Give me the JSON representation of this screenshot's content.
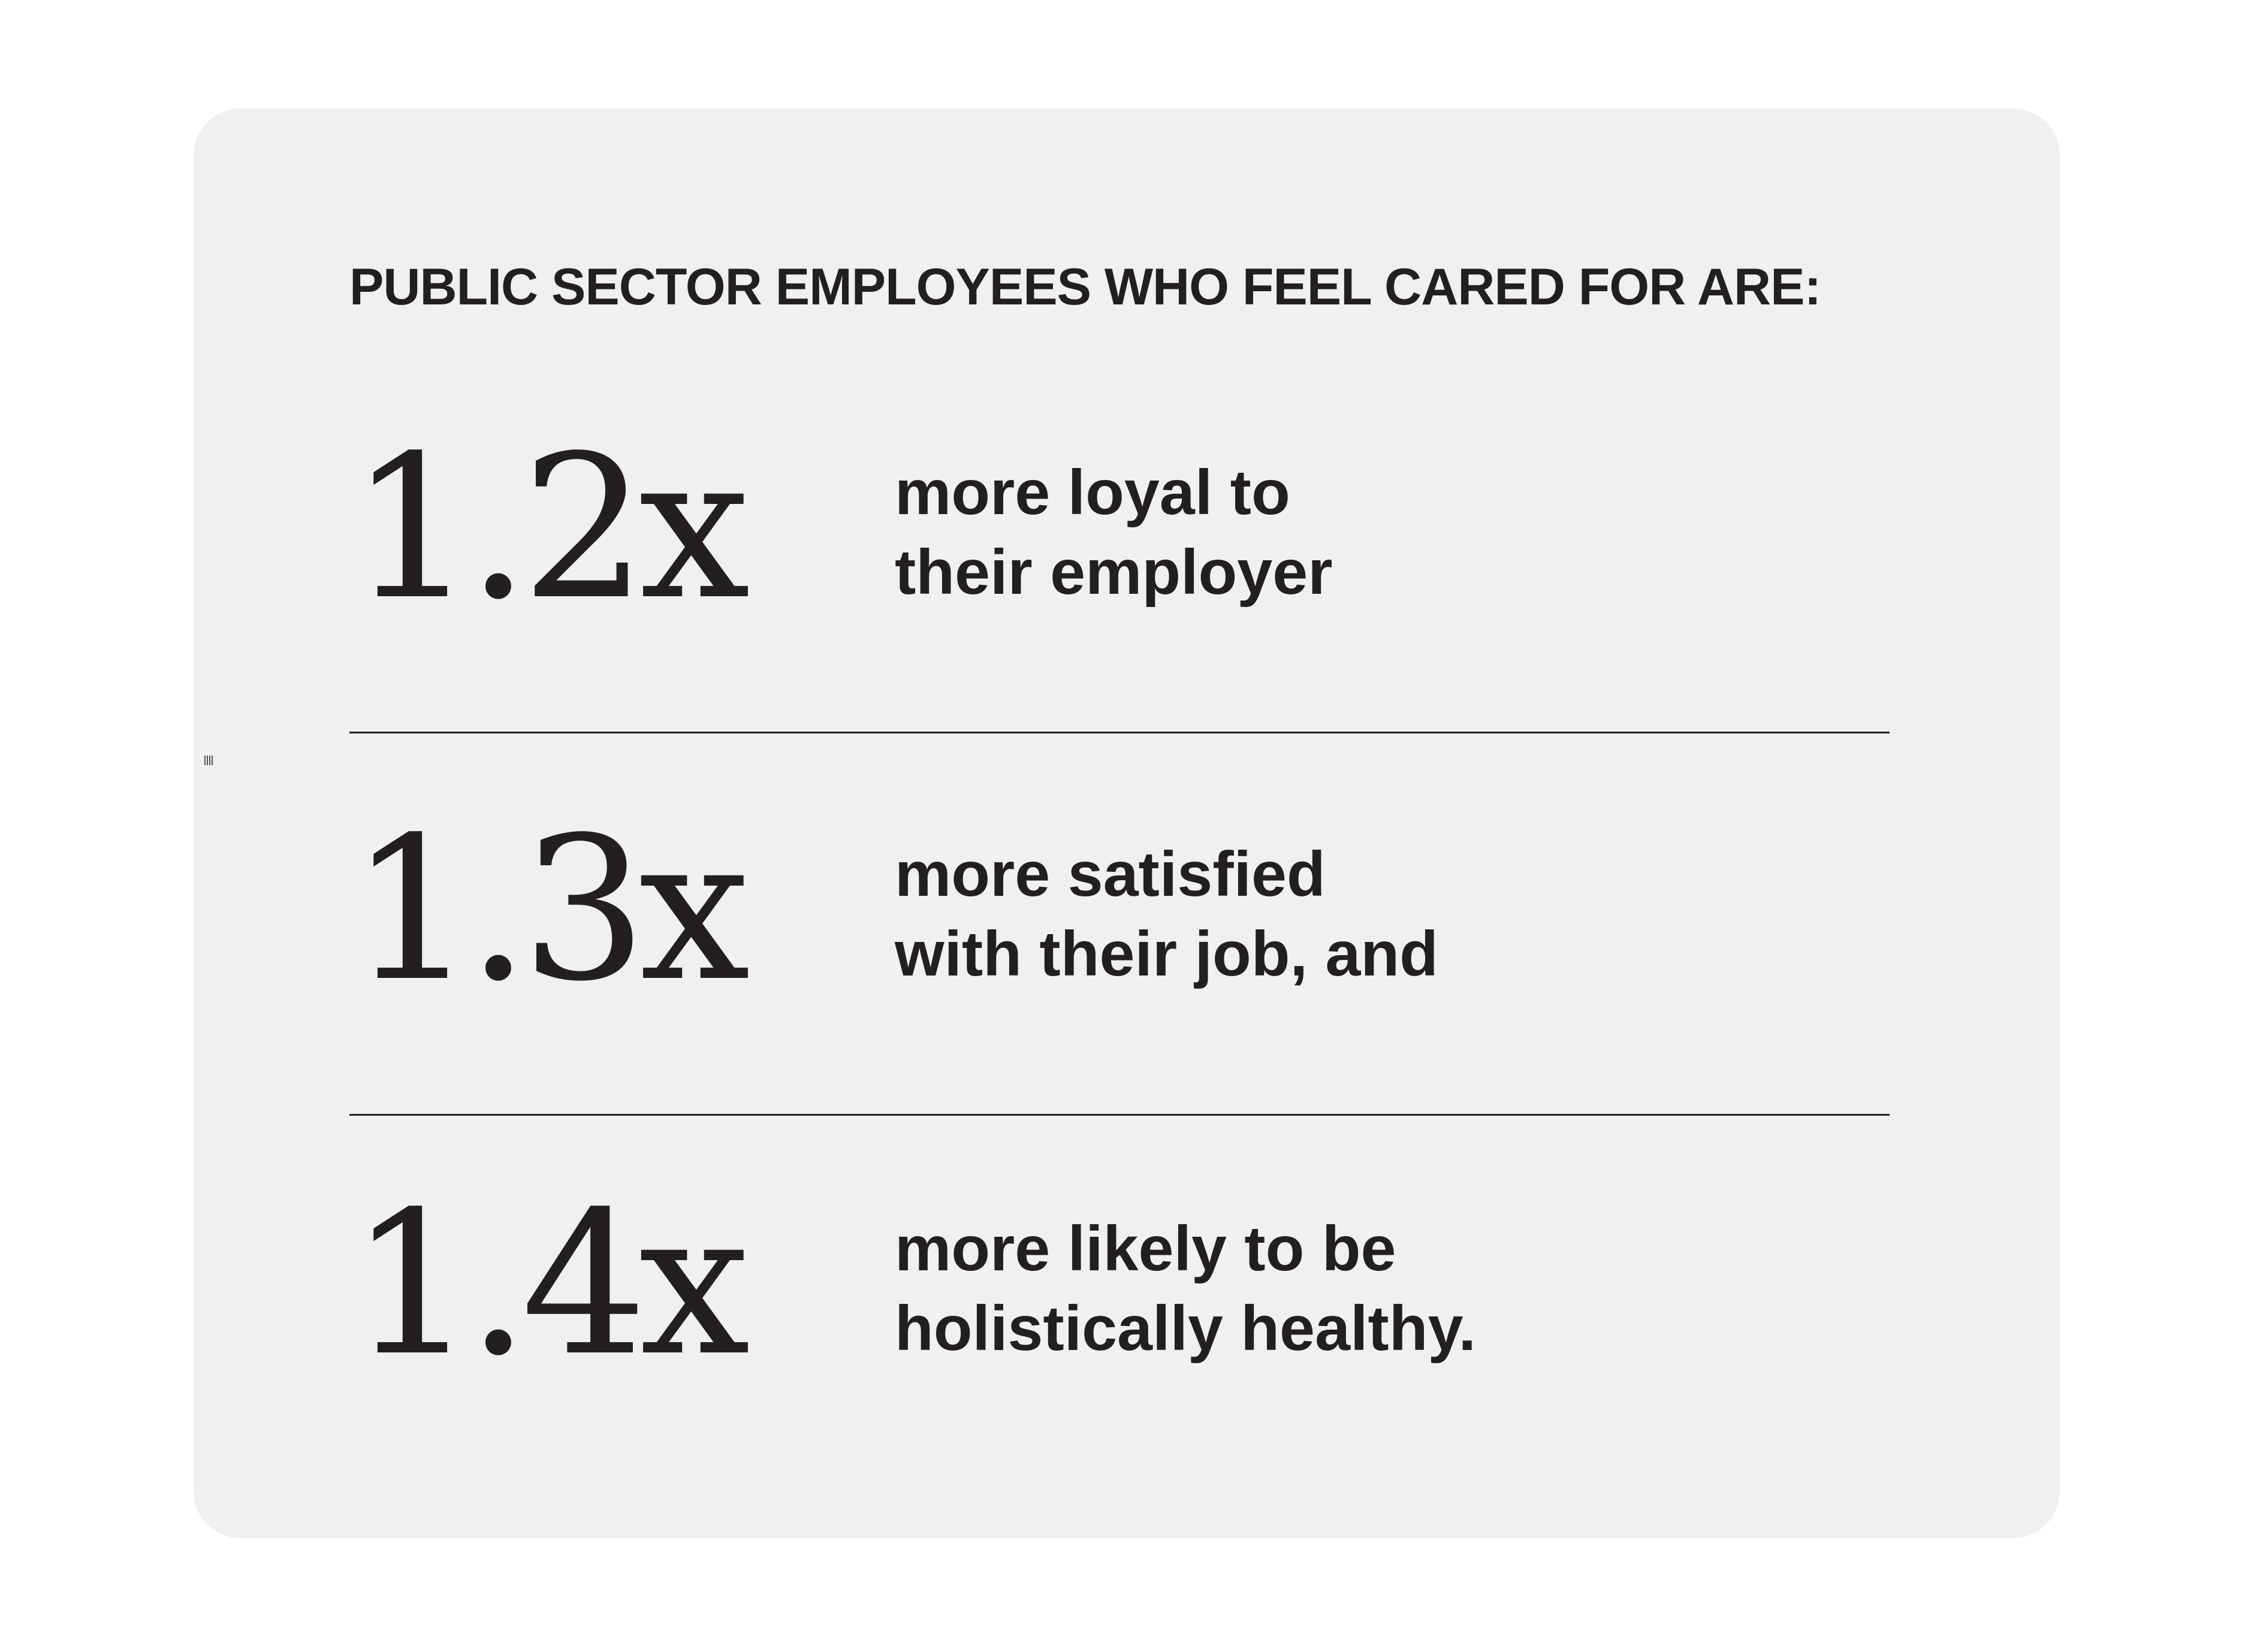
{
  "heading": "PUBLIC SECTOR EMPLOYEES WHO FEEL CARED FOR ARE:",
  "stats": [
    {
      "multiplier": "1.2x",
      "line1": "more loyal to",
      "line2": "their employer"
    },
    {
      "multiplier": "1.3x",
      "line1": "more satisfied",
      "line2": "with their job, and"
    },
    {
      "multiplier": "1.4x",
      "line1": "more likely to be",
      "line2": "holistically healthy."
    }
  ],
  "colors": {
    "background": "#ffffff",
    "card": "#f0f0f0",
    "text": "#231f20"
  }
}
